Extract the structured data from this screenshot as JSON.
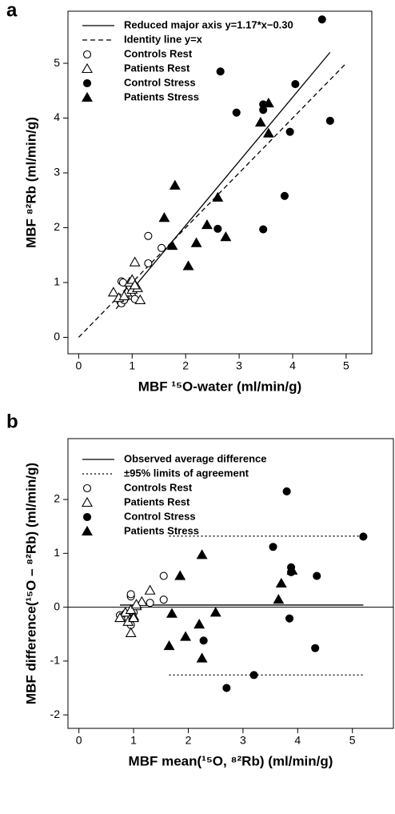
{
  "chart_data": [
    {
      "type": "scatter",
      "panel_label": "a",
      "xlabel": "MBF ¹⁵O-water (ml/min/g)",
      "ylabel": "MBF ⁸²Rb (ml/min/g)",
      "xlim": [
        -0.2,
        5.48
      ],
      "ylim": [
        -0.3,
        5.95
      ],
      "xticks": [
        0,
        1,
        2,
        3,
        4,
        5
      ],
      "yticks": [
        0,
        1,
        2,
        3,
        4,
        5
      ],
      "legend": "top-left",
      "lines": [
        {
          "name": "Reduced major axis y=1.17*x−0.30",
          "dash": "solid",
          "x": [
            0.7,
            4.7
          ],
          "y": [
            0.52,
            5.2
          ]
        },
        {
          "name": "Identity line y=x",
          "dash": "dashed",
          "x": [
            0,
            5
          ],
          "y": [
            0,
            5
          ]
        }
      ],
      "series": [
        {
          "name": "Controls Rest",
          "marker": "circle",
          "filled": false,
          "color": "#000000",
          "x": [
            0.8,
            0.83,
            0.78,
            0.8,
            0.85,
            1.0,
            1.05,
            1.3,
            1.3,
            1.55,
            0.95
          ],
          "y": [
            1.02,
            1.0,
            0.65,
            0.62,
            0.68,
            0.75,
            0.7,
            1.85,
            1.35,
            1.63,
            0.9
          ]
        },
        {
          "name": "Patients Rest",
          "marker": "triangle",
          "filled": false,
          "color": "#000000",
          "x": [
            0.65,
            0.75,
            0.9,
            0.95,
            1.0,
            1.05,
            1.0,
            1.1,
            1.15,
            0.85,
            1.05
          ],
          "y": [
            0.82,
            0.72,
            0.82,
            1.0,
            1.05,
            1.37,
            0.87,
            0.9,
            0.68,
            0.75,
            0.95
          ]
        },
        {
          "name": "Control Stress",
          "marker": "circle",
          "filled": true,
          "color": "#000000",
          "x": [
            4.55,
            2.65,
            4.05,
            3.45,
            3.45,
            2.95,
            3.95,
            4.7,
            3.85,
            2.6,
            3.45
          ],
          "y": [
            5.8,
            4.85,
            4.62,
            4.25,
            4.15,
            4.1,
            3.75,
            3.95,
            2.58,
            1.98,
            1.97
          ]
        },
        {
          "name": "Patients Stress",
          "marker": "triangle",
          "filled": true,
          "color": "#000000",
          "x": [
            3.55,
            3.4,
            3.55,
            1.8,
            1.6,
            2.6,
            2.4,
            1.75,
            2.2,
            2.75,
            2.05
          ],
          "y": [
            4.27,
            3.92,
            3.72,
            2.77,
            2.18,
            2.55,
            2.05,
            1.67,
            1.72,
            1.83,
            1.3
          ]
        }
      ]
    },
    {
      "type": "scatter",
      "panel_label": "b",
      "xlabel": "MBF mean(¹⁵O, ⁸²Rb) (ml/min/g)",
      "ylabel": "MBF difference(¹⁵O – ⁸²Rb) (ml/min/g)",
      "xlim": [
        -0.2,
        5.75
      ],
      "ylim": [
        -2.25,
        3.13
      ],
      "xticks": [
        0,
        1,
        2,
        3,
        4,
        5
      ],
      "yticks": [
        -2,
        -1,
        0,
        1,
        2
      ],
      "legend": "top-left",
      "hline": 0,
      "lines": [
        {
          "name": "Observed average difference",
          "dash": "solid",
          "x": [
            0.75,
            5.2
          ],
          "y": [
            0.04,
            0.04
          ]
        },
        {
          "name": "±95% limits of agreement",
          "dash": "dotted",
          "x": [
            1.65,
            5.2
          ],
          "y": [
            1.32,
            1.32
          ]
        },
        {
          "dash": "dotted",
          "x": [
            1.65,
            5.2
          ],
          "y": [
            -1.26,
            -1.26
          ]
        }
      ],
      "series": [
        {
          "name": "Controls Rest",
          "marker": "circle",
          "filled": false,
          "color": "#000000",
          "x": [
            0.75,
            0.8,
            0.85,
            0.95,
            0.95,
            0.95,
            1.0,
            1.3,
            1.55,
            1.55,
            0.9
          ],
          "y": [
            -0.15,
            -0.18,
            -0.12,
            -0.33,
            0.2,
            0.24,
            -0.1,
            0.08,
            0.58,
            0.14,
            -0.2
          ]
        },
        {
          "name": "Patients Rest",
          "marker": "triangle",
          "filled": false,
          "color": "#000000",
          "x": [
            0.85,
            0.9,
            0.95,
            1.0,
            1.05,
            1.15,
            1.3,
            0.95,
            1.05,
            0.75,
            1.0
          ],
          "y": [
            -0.1,
            -0.27,
            -0.48,
            -0.17,
            0.02,
            0.1,
            0.31,
            -0.05,
            0.05,
            -0.2,
            -0.2
          ]
        },
        {
          "name": "Control Stress",
          "marker": "circle",
          "filled": true,
          "color": "#000000",
          "x": [
            3.8,
            5.2,
            3.55,
            3.88,
            3.88,
            4.35,
            3.85,
            2.28,
            4.32,
            3.2,
            2.7
          ],
          "y": [
            2.15,
            1.31,
            1.12,
            0.74,
            0.65,
            0.58,
            -0.21,
            -0.62,
            -0.76,
            -1.26,
            -1.5
          ]
        },
        {
          "name": "Patients Stress",
          "marker": "triangle",
          "filled": true,
          "color": "#000000",
          "x": [
            2.25,
            1.85,
            3.9,
            3.7,
            3.65,
            2.5,
            1.7,
            2.2,
            1.95,
            1.65,
            2.25
          ],
          "y": [
            0.97,
            0.58,
            0.68,
            0.44,
            0.14,
            -0.1,
            -0.12,
            -0.32,
            -0.55,
            -0.72,
            -0.95
          ]
        }
      ]
    }
  ]
}
